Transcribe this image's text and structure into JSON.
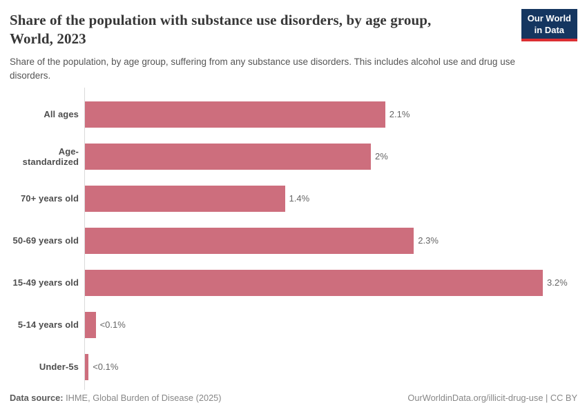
{
  "header": {
    "title_line1": "Share of the population with substance use disorders, by age group,",
    "title_line2": "World, 2023",
    "subtitle": "Share of the population, by age group, suffering from any substance use disorders. This includes alcohol use and drug use disorders.",
    "logo": {
      "line1": "Our World",
      "line2": "in Data",
      "bg_color": "#153660",
      "accent_color": "#dc2e32"
    }
  },
  "chart_data": {
    "type": "bar",
    "orientation": "horizontal",
    "title": "Share of the population with substance use disorders, by age group, World, 2023",
    "year": "2023",
    "unit": "%",
    "categories": [
      "All ages",
      "Age-standardized",
      "70+ years old",
      "50-69 years old",
      "15-49 years old",
      "5-14 years old",
      "Under-5s"
    ],
    "values": [
      2.1,
      2.0,
      1.4,
      2.3,
      3.2,
      0.08,
      0.03
    ],
    "value_labels": [
      "2.1%",
      "2%",
      "1.4%",
      "2.3%",
      "3.2%",
      "<0.1%",
      "<0.1%"
    ],
    "xlim": [
      0,
      3.2
    ],
    "grid": false,
    "legend": "none",
    "bar_color": "#cd6e7d",
    "axis_color": "#dadada"
  },
  "footer": {
    "source_label": "Data source:",
    "source_value": " IHME, Global Burden of Disease (2025)",
    "link": "OurWorldinData.org/illicit-drug-use",
    "separator": " | ",
    "license": "CC BY"
  }
}
